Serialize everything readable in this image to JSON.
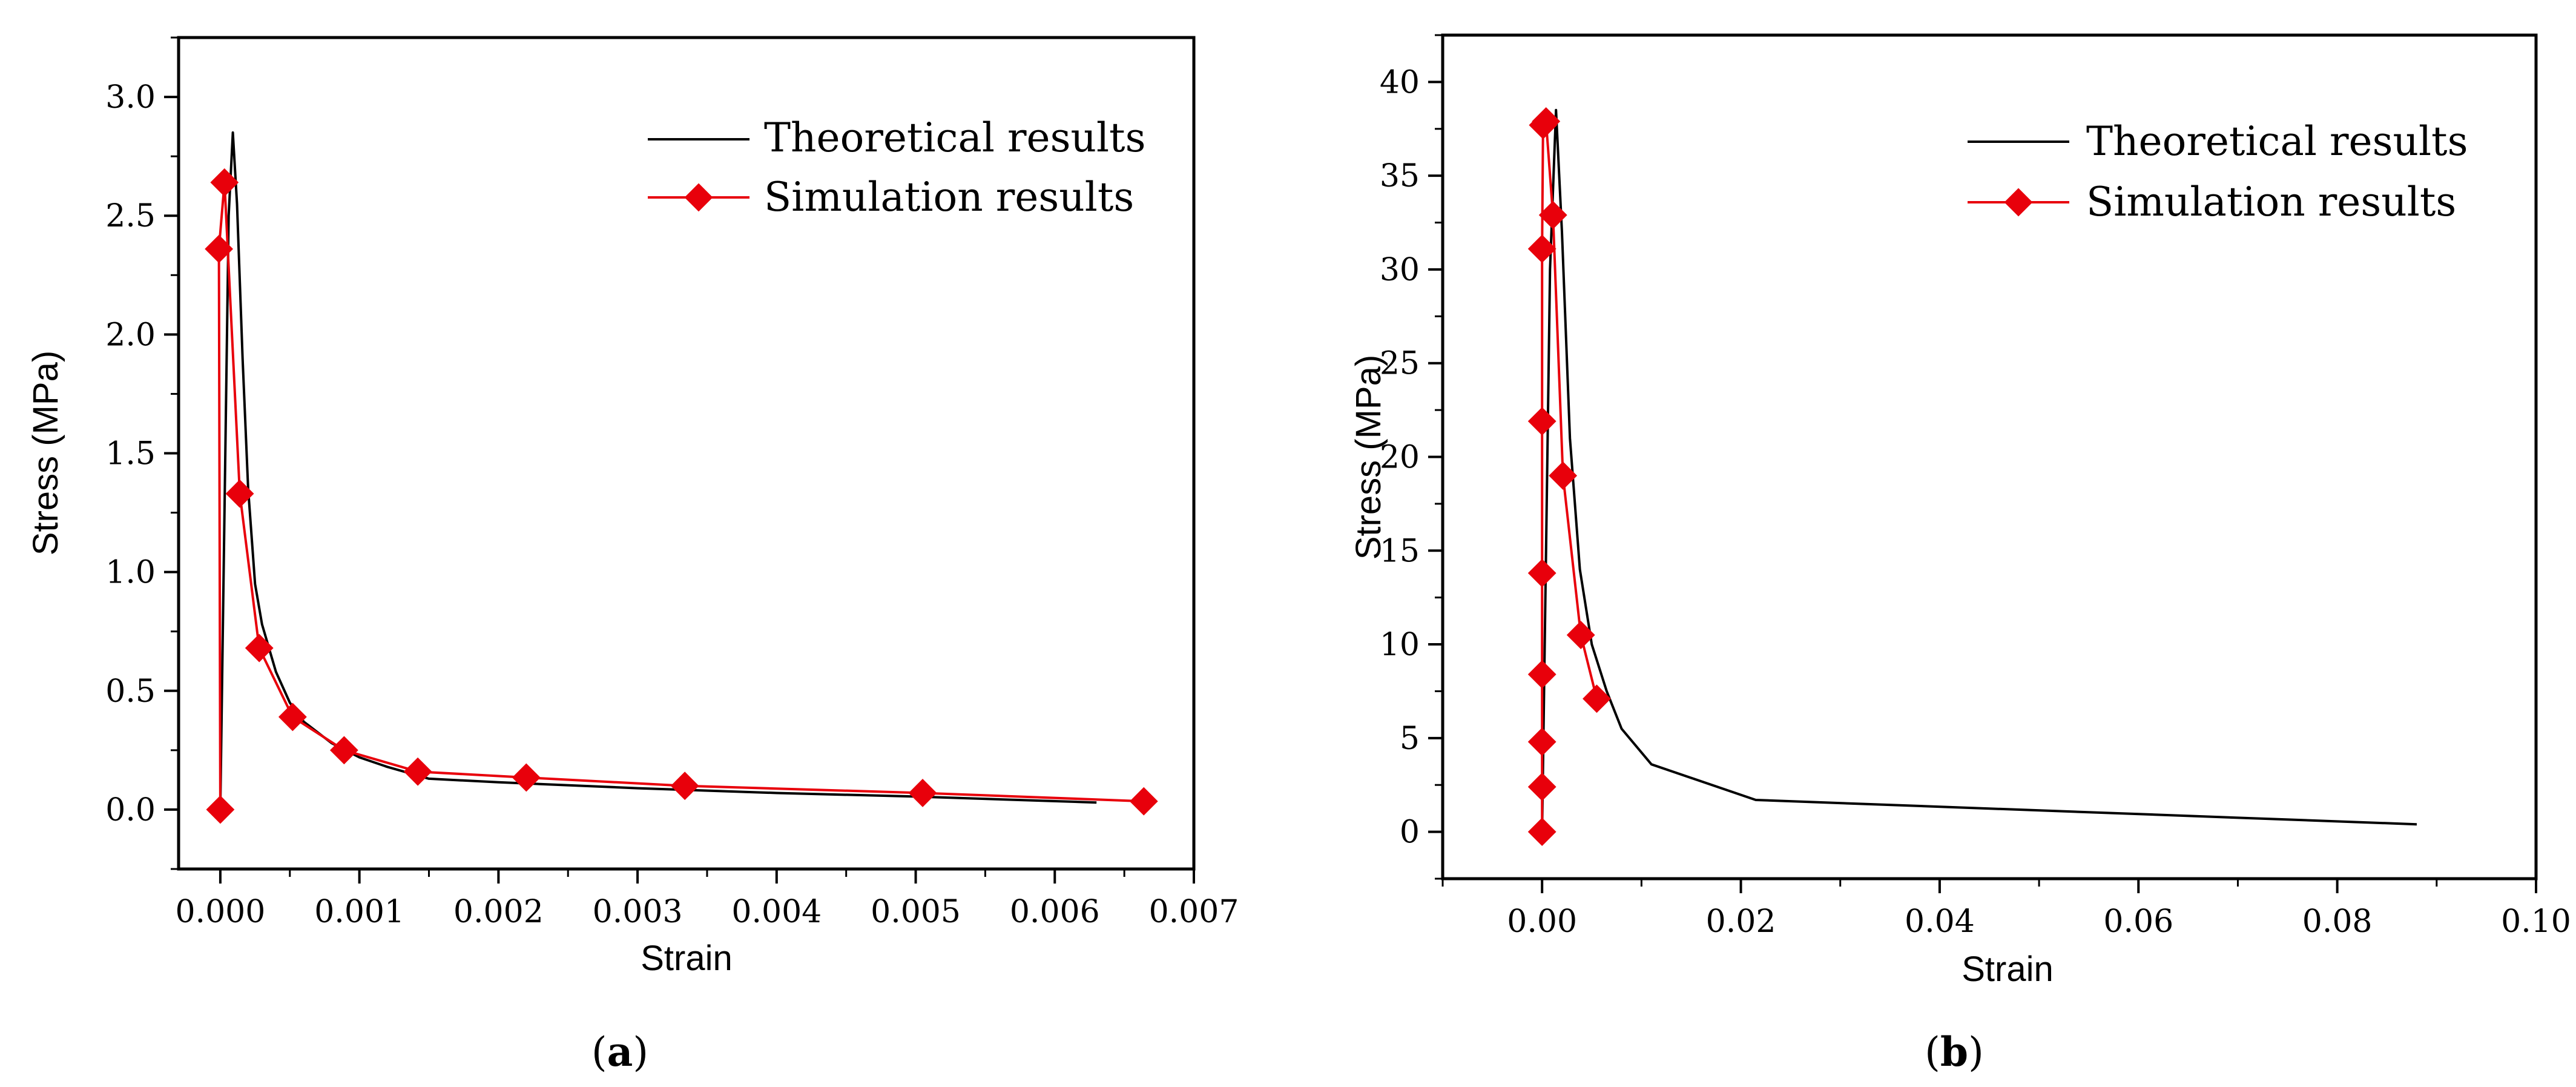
{
  "chart_data": [
    {
      "type": "line",
      "panel_label": "a",
      "xlabel": "Strain",
      "ylabel": "Stress (MPa)",
      "xlim": [
        -0.0003,
        0.007
      ],
      "ylim": [
        -0.25,
        3.25
      ],
      "xticks": [
        0.0,
        0.001,
        0.002,
        0.003,
        0.004,
        0.005,
        0.006,
        0.007
      ],
      "xtick_labels": [
        "0.000",
        "0.001",
        "0.002",
        "0.003",
        "0.004",
        "0.005",
        "0.006",
        "0.007"
      ],
      "yticks": [
        0.0,
        0.5,
        1.0,
        1.5,
        2.0,
        2.5,
        3.0
      ],
      "ytick_labels": [
        "0.0",
        "0.5",
        "1.0",
        "1.5",
        "2.0",
        "2.5",
        "3.0"
      ],
      "legend": {
        "placement": "top-right"
      },
      "series": [
        {
          "name": "Theoretical results",
          "color": "#000000",
          "marker": "none",
          "x": [
            0.0,
            6e-05,
            9e-05,
            0.00012,
            0.00016,
            0.0002,
            0.00025,
            0.0003,
            0.0004,
            0.0005,
            0.0006,
            0.0008,
            0.001,
            0.0012,
            0.0015,
            0.002,
            0.003,
            0.004,
            0.005,
            0.0063
          ],
          "y": [
            0.0,
            2.5,
            2.85,
            2.55,
            1.9,
            1.35,
            0.95,
            0.78,
            0.58,
            0.45,
            0.37,
            0.28,
            0.22,
            0.18,
            0.13,
            0.115,
            0.09,
            0.07,
            0.055,
            0.03
          ]
        },
        {
          "name": "Simulation results",
          "color": "#e8000b",
          "marker": "diamond",
          "x": [
            0.0,
            -1e-05,
            3e-05,
            0.00014,
            0.00028,
            0.00052,
            0.00089,
            0.00142,
            0.0022,
            0.00334,
            0.00505,
            0.00664
          ],
          "y": [
            0.0,
            2.36,
            2.64,
            1.33,
            0.68,
            0.39,
            0.25,
            0.16,
            0.135,
            0.1,
            0.07,
            0.035
          ]
        }
      ]
    },
    {
      "type": "line",
      "panel_label": "b",
      "xlabel": "Strain",
      "ylabel": "Stress (MPa)",
      "xlim": [
        -0.01,
        0.1
      ],
      "ylim": [
        -2.5,
        42.5
      ],
      "xticks": [
        0.0,
        0.02,
        0.04,
        0.06,
        0.08,
        0.1
      ],
      "xtick_labels": [
        "0.00",
        "0.02",
        "0.04",
        "0.06",
        "0.08",
        "0.10"
      ],
      "yticks": [
        0,
        5,
        10,
        15,
        20,
        25,
        30,
        35,
        40
      ],
      "ytick_labels": [
        "0",
        "5",
        "10",
        "15",
        "20",
        "25",
        "30",
        "35",
        "40"
      ],
      "legend": {
        "placement": "top-right"
      },
      "series": [
        {
          "name": "Theoretical results",
          "color": "#000000",
          "marker": "none",
          "x": [
            0.0,
            0.0008,
            0.0014,
            0.002,
            0.0028,
            0.0038,
            0.005,
            0.0065,
            0.008,
            0.011,
            0.0215,
            0.088
          ],
          "y": [
            0.0,
            30.0,
            38.5,
            32.0,
            21.0,
            14.0,
            10.0,
            7.5,
            5.5,
            3.6,
            1.7,
            0.4
          ]
        },
        {
          "name": "Simulation results",
          "color": "#e8000b",
          "marker": "diamond",
          "x": [
            0.0,
            0.0,
            0.0,
            0.0,
            0.0,
            0.0,
            0.0,
            0.0001,
            0.0004,
            0.0011,
            0.0021,
            0.0039,
            0.0055
          ],
          "y": [
            0.0,
            2.4,
            4.8,
            8.4,
            13.8,
            21.9,
            31.1,
            37.7,
            37.9,
            32.9,
            19.0,
            10.5,
            7.1
          ]
        }
      ]
    }
  ]
}
